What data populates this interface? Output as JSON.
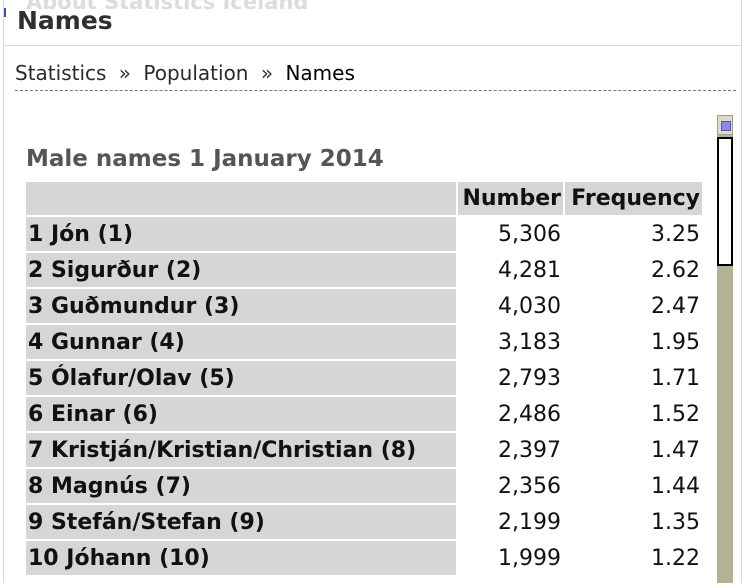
{
  "header": {
    "ghost_text": "About Statistics Iceland",
    "title": "Names"
  },
  "breadcrumb": {
    "items": [
      "Statistics",
      "Population",
      "Names"
    ],
    "separator": "»"
  },
  "table": {
    "caption": "Male names 1 January 2014",
    "columns": [
      "",
      "Number",
      "Frequency"
    ],
    "rows": [
      {
        "name": "1 Jón (1)",
        "number": "5,306",
        "frequency": "3.25"
      },
      {
        "name": "2 Sigurður (2)",
        "number": "4,281",
        "frequency": "2.62"
      },
      {
        "name": "3 Guðmundur (3)",
        "number": "4,030",
        "frequency": "2.47"
      },
      {
        "name": "4 Gunnar (4)",
        "number": "3,183",
        "frequency": "1.95"
      },
      {
        "name": "5 Ólafur/Olav (5)",
        "number": "2,793",
        "frequency": "1.71"
      },
      {
        "name": "6 Einar (6)",
        "number": "2,486",
        "frequency": "1.52"
      },
      {
        "name": "7 Kristján/Kristian/Christian (8)",
        "number": "2,397",
        "frequency": "1.47"
      },
      {
        "name": "8 Magnús (7)",
        "number": "2,356",
        "frequency": "1.44"
      },
      {
        "name": "9 Stefán/Stefan (9)",
        "number": "2,199",
        "frequency": "1.35"
      },
      {
        "name": "10 Jóhann (10)",
        "number": "1,999",
        "frequency": "1.22"
      }
    ]
  },
  "colors": {
    "label_bg": "#d6d6d6",
    "scroll_track": "#b3b294"
  }
}
